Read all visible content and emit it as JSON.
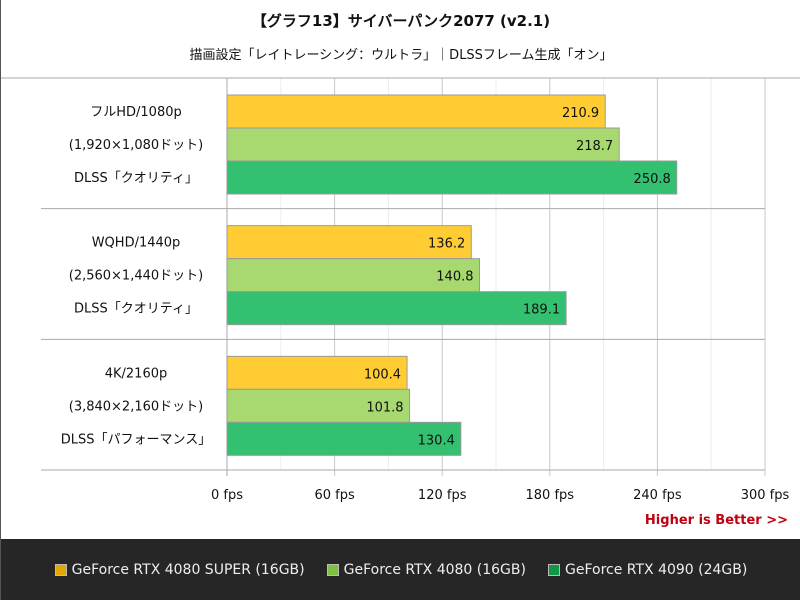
{
  "chart_data": {
    "type": "bar",
    "orientation": "horizontal",
    "title": "【グラフ13】サイバーパンク2077 (v2.1)",
    "subtitle": "描画設定「レイトレーシング：ウルトラ」｜DLSSフレーム生成「オン」",
    "categories": [
      [
        "フルHD/1080p",
        "(1,920×1,080ドット)",
        "DLSS「クオリティ」"
      ],
      [
        "WQHD/1440p",
        "(2,560×1,440ドット)",
        "DLSS「クオリティ」"
      ],
      [
        "4K/2160p",
        "(3,840×2,160ドット)",
        "DLSS「パフォーマンス」"
      ]
    ],
    "series": [
      {
        "name": "GeForce RTX 4080 SUPER (16GB)",
        "color": "#ffcc33",
        "values": [
          210.9,
          136.2,
          100.4
        ]
      },
      {
        "name": "GeForce RTX 4080 (16GB)",
        "color": "#a8d870",
        "values": [
          218.7,
          140.8,
          101.8
        ]
      },
      {
        "name": "GeForce RTX 4090 (24GB)",
        "color": "#33c070",
        "values": [
          250.8,
          189.1,
          130.4
        ]
      }
    ],
    "xlim": [
      0,
      300
    ],
    "xticks": [
      0,
      60,
      120,
      180,
      240,
      300
    ],
    "xtick_labels": [
      "0 fps",
      "60 fps",
      "120 fps",
      "180 fps",
      "240 fps",
      "300 fps"
    ],
    "grid": true,
    "legend": "bottom",
    "annotation": "Higher is Better >>",
    "annotation_color": "#c00010",
    "legend_swatch_colors": [
      "#e0a800",
      "#80c040",
      "#109848"
    ]
  }
}
